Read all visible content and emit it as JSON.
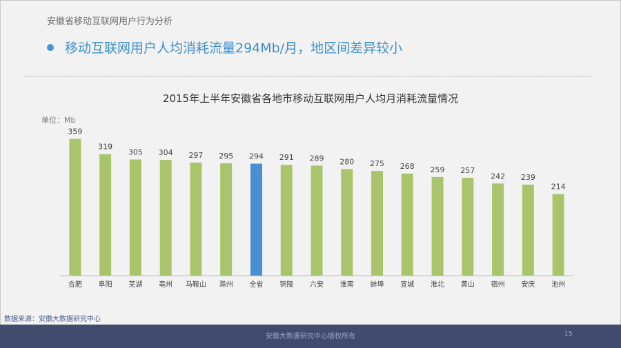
{
  "header": {
    "section_title": "安徽省移动互联网用户行为分析",
    "headline": "移动互联网用户人均消耗流量294Mb/月，地区间差异较小"
  },
  "chart_data": {
    "type": "bar",
    "title": "2015年上半年安徽省各地市移动互联网用户人均月消耗流量情况",
    "unit_label": "单位：Mb",
    "categories": [
      "合肥",
      "阜阳",
      "芜湖",
      "亳州",
      "马鞍山",
      "滁州",
      "全省",
      "铜陵",
      "六安",
      "淮南",
      "蚌埠",
      "宣城",
      "淮北",
      "黄山",
      "宿州",
      "安庆",
      "池州"
    ],
    "values": [
      359,
      319,
      305,
      304,
      297,
      295,
      294,
      291,
      289,
      280,
      275,
      268,
      259,
      257,
      242,
      239,
      214
    ],
    "highlight_category": "全省",
    "colors": {
      "bar": "#a9c56c",
      "highlight": "#4a8fd4"
    },
    "ylim": [
      0,
      380
    ],
    "grid": false,
    "legend": "none"
  },
  "footer": {
    "source": "数据来源：安徽大数据研究中心",
    "copyright": "安徽大数据研究中心版权所有",
    "page_number": "15"
  }
}
